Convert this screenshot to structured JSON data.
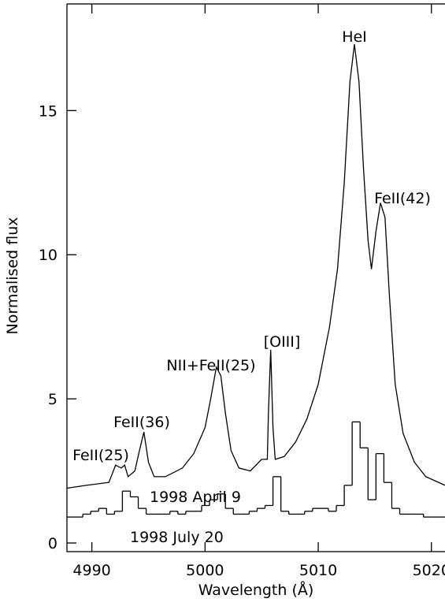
{
  "chart_data": {
    "type": "line",
    "xlabel": "Wavelength (Å)",
    "ylabel": "Normalised flux",
    "xlim": [
      4987.8,
      5021.2
    ],
    "ylim": [
      -0.3,
      18.7
    ],
    "xticks": [
      4990,
      5000,
      5010,
      5020
    ],
    "yticks": [
      0,
      5,
      10,
      15
    ],
    "series": [
      {
        "name": "1998 April 9",
        "color": "#000000",
        "drawstyle": "line",
        "x": [
          4987.8,
          4989.5,
          4991.5,
          4992.1,
          4992.6,
          4992.9,
          4993.2,
          4993.8,
          4994.2,
          4994.6,
          4995.0,
          4995.5,
          4996.5,
          4998,
          4999,
          5000,
          5000.5,
          5001,
          5001.4,
          5001.8,
          5002.3,
          5003,
          5004,
          5005,
          5005.5,
          5005.6,
          5005.8,
          5006.0,
          5006.2,
          5007,
          5008,
          5009,
          5010,
          5011,
          5011.7,
          5012.3,
          5012.8,
          5013.2,
          5013.6,
          5014,
          5014.4,
          5014.7,
          5015.1,
          5015.5,
          5015.9,
          5016.3,
          5016.8,
          5017.5,
          5018.5,
          5019.5,
          5021.2
        ],
        "values": [
          1.9,
          2.0,
          2.1,
          2.7,
          2.6,
          2.7,
          2.3,
          2.5,
          3.2,
          3.85,
          2.8,
          2.3,
          2.3,
          2.6,
          3.1,
          4.0,
          5.0,
          6.1,
          5.8,
          4.5,
          3.2,
          2.6,
          2.5,
          2.9,
          2.9,
          4.5,
          6.7,
          4.0,
          2.9,
          3.0,
          3.5,
          4.3,
          5.5,
          7.5,
          9.5,
          12.5,
          16,
          17.3,
          16,
          13,
          10.5,
          9.5,
          10.8,
          11.8,
          11.3,
          8.5,
          5.5,
          3.8,
          2.8,
          2.3,
          2.0
        ]
      },
      {
        "name": "1998 July 20",
        "color": "#000000",
        "drawstyle": "steps",
        "x": [
          4987.8,
          4988.5,
          4989.2,
          4989.9,
          4990.6,
          4991.3,
          4992.0,
          4992.7,
          4993.4,
          4994.1,
          4994.8,
          4995.5,
          4996.2,
          4996.9,
          4997.6,
          4998.3,
          4999.0,
          4999.7,
          5000.4,
          5001.1,
          5001.8,
          5002.5,
          5003.2,
          5003.9,
          5004.6,
          5005.3,
          5006.0,
          5006.7,
          5007.4,
          5008.1,
          5008.8,
          5009.5,
          5010.2,
          5010.9,
          5011.6,
          5012.3,
          5013.0,
          5013.7,
          5014.4,
          5015.1,
          5015.8,
          5016.5,
          5017.2,
          5017.9,
          5018.6,
          5019.3,
          5020.0,
          5020.7
        ],
        "values": [
          0.9,
          0.9,
          1.0,
          1.1,
          1.2,
          1.0,
          1.1,
          1.8,
          1.6,
          1.2,
          1.0,
          1.0,
          1.0,
          1.1,
          1.0,
          1.1,
          1.1,
          1.3,
          1.5,
          1.7,
          1.2,
          1.0,
          1.0,
          1.1,
          1.2,
          1.3,
          2.3,
          1.1,
          1.0,
          1.0,
          1.1,
          1.2,
          1.2,
          1.1,
          1.3,
          2.0,
          4.2,
          3.3,
          1.5,
          3.1,
          2.1,
          1.2,
          1.0,
          1.0,
          1.0,
          0.9,
          0.9,
          0.9
        ]
      }
    ],
    "annotations": [
      "HeI",
      "FeII(42)",
      "[OIII]",
      "NII+FeII(25)",
      "FeII(36)",
      "FeII(25)"
    ]
  }
}
